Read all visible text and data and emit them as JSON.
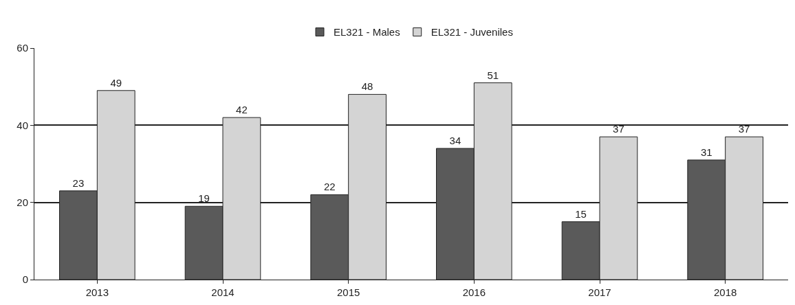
{
  "chart_data": {
    "type": "bar",
    "categories": [
      "2013",
      "2014",
      "2015",
      "2016",
      "2017",
      "2018"
    ],
    "series": [
      {
        "name": "EL321 - Males",
        "color": "#5a5a5a",
        "values": [
          23,
          19,
          22,
          34,
          15,
          31
        ]
      },
      {
        "name": "EL321 - Juveniles",
        "color": "#d4d4d4",
        "values": [
          49,
          42,
          48,
          51,
          37,
          37
        ]
      }
    ],
    "ylim": [
      0,
      60
    ],
    "yticks": [
      0,
      20,
      40,
      60
    ],
    "grid": "y",
    "legend": "top",
    "data_labels": true
  }
}
